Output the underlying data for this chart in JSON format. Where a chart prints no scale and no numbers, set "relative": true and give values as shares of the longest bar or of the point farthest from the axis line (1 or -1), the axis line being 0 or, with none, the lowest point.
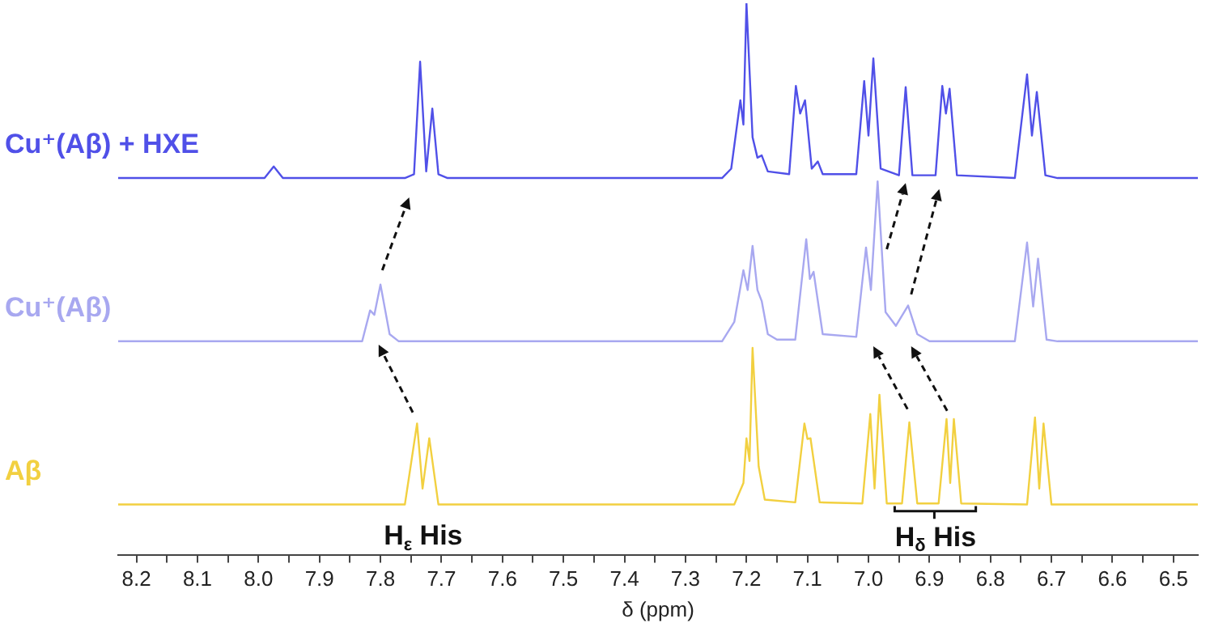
{
  "chart_data": {
    "type": "line",
    "relative": true,
    "xlabel": "δ (ppm)",
    "xlim": [
      8.23,
      6.46
    ],
    "xticks": [
      8.2,
      {
        "value": 8.15,
        "label": null
      },
      8.1,
      {
        "value": 8.05,
        "label": null
      },
      {
        "value": 8,
        "label": "8.0"
      },
      {
        "value": 7.95,
        "label": null
      },
      7.9,
      {
        "value": 7.85,
        "label": null
      },
      7.8,
      {
        "value": 7.75,
        "label": null
      },
      7.7,
      {
        "value": 7.65,
        "label": null
      },
      7.6,
      {
        "value": 7.55,
        "label": null
      },
      7.5,
      {
        "value": 7.45,
        "label": null
      },
      7.4,
      {
        "value": 7.35,
        "label": null
      },
      7.3,
      {
        "value": 7.25,
        "label": null
      },
      7.2,
      {
        "value": 7.15,
        "label": null
      },
      7.1,
      {
        "value": 7.05,
        "label": null
      },
      {
        "value": 7,
        "label": "7.0"
      },
      {
        "value": 6.95,
        "label": null
      },
      6.9,
      {
        "value": 6.85,
        "label": null
      },
      6.8,
      {
        "value": 6.75,
        "label": null
      },
      6.7,
      {
        "value": 6.65,
        "label": null
      },
      6.6,
      {
        "value": 6.55,
        "label": null
      },
      6.5
    ],
    "grid": false,
    "legend": false,
    "marker": "none",
    "line_style": "solid",
    "series": [
      {
        "name": "Cu⁺(Aβ) + HXE",
        "color": "#5050e8",
        "x": [
          8.23,
          7.99,
          7.975,
          7.96,
          7.76,
          7.745,
          7.735,
          7.725,
          7.715,
          7.705,
          7.69,
          7.24,
          7.225,
          7.21,
          7.205,
          7.2,
          7.19,
          7.182,
          7.175,
          7.165,
          7.13,
          7.119,
          7.112,
          7.104,
          7.093,
          7.083,
          7.075,
          7.02,
          7.007,
          7.0,
          6.992,
          6.98,
          6.95,
          6.939,
          6.928,
          6.89,
          6.879,
          6.873,
          6.867,
          6.855,
          6.76,
          6.74,
          6.732,
          6.724,
          6.71,
          6.69,
          6.46
        ],
        "values": [
          0.683,
          0.683,
          0.704,
          0.683,
          0.683,
          0.69,
          0.894,
          0.695,
          0.809,
          0.69,
          0.683,
          0.683,
          0.7,
          0.824,
          0.78,
          1.0,
          0.757,
          0.72,
          0.724,
          0.695,
          0.69,
          0.85,
          0.8,
          0.824,
          0.7,
          0.713,
          0.69,
          0.69,
          0.859,
          0.76,
          0.9,
          0.7,
          0.688,
          0.848,
          0.688,
          0.688,
          0.85,
          0.8,
          0.845,
          0.688,
          0.683,
          0.871,
          0.76,
          0.839,
          0.688,
          0.683,
          0.683
        ]
      },
      {
        "name": "Cu⁺(Aβ)",
        "color": "#a8a8f0",
        "x": [
          8.23,
          7.83,
          7.817,
          7.81,
          7.8,
          7.785,
          7.77,
          7.24,
          7.22,
          7.205,
          7.198,
          7.19,
          7.182,
          7.175,
          7.165,
          7.15,
          7.12,
          7.102,
          7.096,
          7.09,
          7.075,
          7.02,
          7.004,
          6.996,
          6.985,
          6.972,
          6.955,
          6.935,
          6.92,
          6.9,
          6.76,
          6.74,
          6.73,
          6.722,
          6.708,
          6.69,
          6.46
        ],
        "values": [
          0.387,
          0.387,
          0.443,
          0.435,
          0.49,
          0.4,
          0.387,
          0.387,
          0.422,
          0.516,
          0.48,
          0.56,
          0.48,
          0.46,
          0.4,
          0.39,
          0.39,
          0.572,
          0.5,
          0.513,
          0.4,
          0.395,
          0.557,
          0.48,
          0.677,
          0.44,
          0.415,
          0.452,
          0.4,
          0.387,
          0.387,
          0.566,
          0.45,
          0.537,
          0.39,
          0.387,
          0.387
        ]
      },
      {
        "name": "Aβ",
        "color": "#f2d040",
        "x": [
          8.23,
          7.76,
          7.74,
          7.731,
          7.72,
          7.705,
          7.22,
          7.205,
          7.2,
          7.195,
          7.19,
          7.18,
          7.17,
          7.12,
          7.105,
          7.1,
          7.095,
          7.08,
          7.01,
          6.997,
          6.99,
          6.982,
          6.97,
          6.945,
          6.933,
          6.92,
          6.885,
          6.872,
          6.866,
          6.86,
          6.848,
          6.74,
          6.727,
          6.72,
          6.713,
          6.7,
          6.46
        ],
        "values": [
          0.091,
          0.091,
          0.238,
          0.12,
          0.211,
          0.091,
          0.091,
          0.13,
          0.211,
          0.17,
          0.375,
          0.16,
          0.1,
          0.095,
          0.238,
          0.21,
          0.211,
          0.095,
          0.093,
          0.255,
          0.12,
          0.29,
          0.093,
          0.093,
          0.24,
          0.093,
          0.093,
          0.246,
          0.13,
          0.246,
          0.093,
          0.091,
          0.249,
          0.12,
          0.238,
          0.091,
          0.091
        ]
      }
    ],
    "annotations": [
      "H$_{ε}$ His",
      "H$_{δ}$ His"
    ]
  }
}
